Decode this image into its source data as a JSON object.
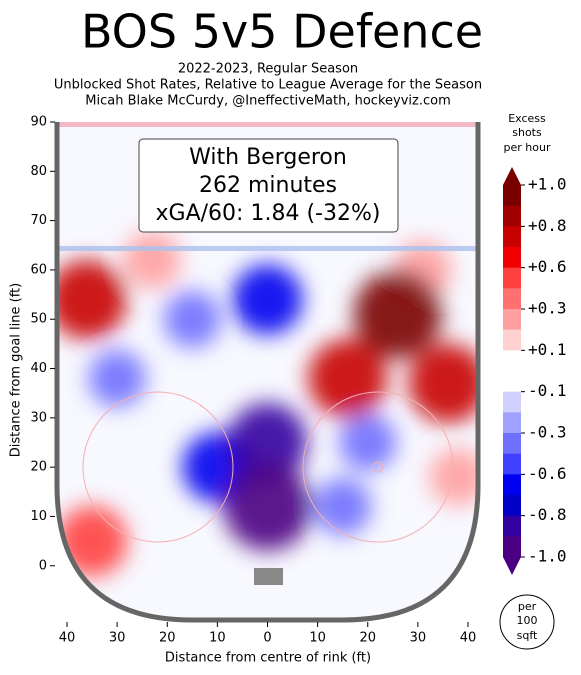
{
  "chart_data": {
    "type": "contour",
    "title": "BOS 5v5 Defence",
    "subtitle": [
      "2022-2023, Regular Season",
      "Unblocked Shot Rates, Relative to League Average for the Season",
      "Micah Blake McCurdy, @IneffectiveMath, hockeyviz.com"
    ],
    "annotation": [
      "With Bergeron",
      "262 minutes",
      "xGA/60: 1.84 (-32%)"
    ],
    "xlabel": "Distance from centre of rink (ft)",
    "ylabel": "Distance from goal line (ft)",
    "xlim": [
      -42,
      42
    ],
    "ylim": [
      -11,
      90
    ],
    "xticks": [
      {
        "value": -40,
        "label": "40"
      },
      {
        "value": -30,
        "label": "30"
      },
      {
        "value": -20,
        "label": "20"
      },
      {
        "value": -10,
        "label": "10"
      },
      0,
      {
        "value": 10,
        "label": "10"
      },
      {
        "value": 20,
        "label": "20"
      },
      {
        "value": 30,
        "label": "30"
      },
      {
        "value": 40,
        "label": "40"
      }
    ],
    "yticks": [
      0,
      10,
      20,
      30,
      40,
      50,
      60,
      70,
      80,
      90
    ],
    "hotspots": {
      "x": [
        -36,
        -23,
        26,
        16,
        36,
        31,
        38,
        -35,
        0,
        0,
        -10,
        0,
        -15,
        -30,
        20,
        15
      ],
      "y": [
        54,
        62,
        51,
        38,
        37,
        60,
        18,
        5,
        12,
        25,
        20,
        54,
        50,
        38,
        25,
        12
      ],
      "values": [
        0.8,
        0.3,
        1.0,
        0.8,
        0.8,
        0.3,
        0.3,
        0.6,
        -1.0,
        -0.8,
        -0.6,
        -0.6,
        -0.3,
        -0.3,
        -0.3,
        -0.3
      ]
    },
    "colorbar_title": [
      "Excess",
      "shots",
      "per hour"
    ],
    "colorbar_ticks": [
      {
        "value": 1.0,
        "label": "+1.0"
      },
      {
        "value": 0.8,
        "label": "+0.8"
      },
      {
        "value": 0.6,
        "label": "+0.6"
      },
      {
        "value": 0.3,
        "label": "+0.3"
      },
      {
        "value": 0.1,
        "label": "+0.1"
      },
      {
        "value": -0.1,
        "label": "-0.1"
      },
      {
        "value": -0.3,
        "label": "-0.3"
      },
      {
        "value": -0.6,
        "label": "-0.6"
      },
      {
        "value": -0.8,
        "label": "-0.8"
      },
      {
        "value": -1.0,
        "label": "-1.0"
      }
    ],
    "colorbar_colors": [
      "#7a0000",
      "#a00000",
      "#c80000",
      "#f00000",
      "#ff4040",
      "#ff7070",
      "#ffa0a0",
      "#ffd0d0",
      "#ffffff",
      "#ffffff",
      "#d0d0ff",
      "#a0a0ff",
      "#7070ff",
      "#4040ff",
      "#0000f0",
      "#0000c8",
      "#3300a0",
      "#4b0082"
    ],
    "scale_note": [
      "per",
      "100",
      "sqft"
    ]
  }
}
